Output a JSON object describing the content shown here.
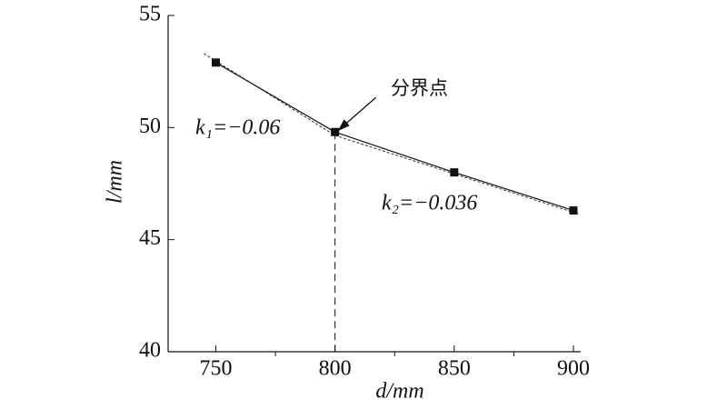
{
  "chart_data": {
    "type": "line",
    "x_label": "d/mm",
    "y_label": "l/mm",
    "x": [
      750,
      800,
      850,
      900
    ],
    "series": [
      {
        "name": "l",
        "color": "#111111",
        "values": [
          52.9,
          49.8,
          48.0,
          46.3
        ]
      }
    ],
    "fit_lines": [
      {
        "x": [
          745,
          800
        ],
        "y": [
          53.3,
          49.65
        ]
      },
      {
        "x": [
          800,
          902
        ],
        "y": [
          49.65,
          46.15
        ]
      }
    ],
    "xlim": [
      730,
      900
    ],
    "xticks": [
      750,
      800,
      850,
      900
    ],
    "xminor_ticks": [
      775,
      825,
      875
    ],
    "ylim": [
      40,
      55
    ],
    "yticks": [
      40,
      45,
      50,
      55
    ],
    "annotations": [
      {
        "text": "分界点"
      },
      {
        "text": "k₁=−0.06"
      },
      {
        "text": "k₂=−0.036"
      }
    ]
  }
}
